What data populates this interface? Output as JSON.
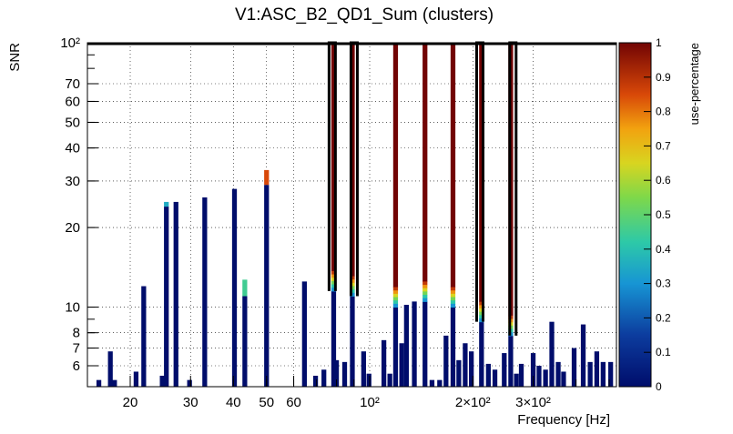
{
  "chart_data": {
    "type": "bar",
    "title": "V1:ASC_B2_QD1_Sum (clusters)",
    "xlabel": "Frequency [Hz]",
    "ylabel": "SNR",
    "xscale": "log",
    "yscale": "log",
    "xlim": [
      15,
      525
    ],
    "ylim": [
      5,
      100
    ],
    "grid": true,
    "x_ticks": [
      {
        "value": 20,
        "label": "20"
      },
      {
        "value": 30,
        "label": "30"
      },
      {
        "value": 40,
        "label": "40"
      },
      {
        "value": 50,
        "label": "50"
      },
      {
        "value": 60,
        "label": "60"
      },
      {
        "value": 100,
        "label": "10²"
      },
      {
        "value": 200,
        "label": "2×10²"
      },
      {
        "value": 300,
        "label": "3×10²"
      }
    ],
    "y_ticks": [
      {
        "value": 6,
        "label": "6"
      },
      {
        "value": 7,
        "label": "7"
      },
      {
        "value": 8,
        "label": "8"
      },
      {
        "value": 10,
        "label": "10"
      },
      {
        "value": 20,
        "label": "20"
      },
      {
        "value": 30,
        "label": "30"
      },
      {
        "value": 40,
        "label": "40"
      },
      {
        "value": 50,
        "label": "50"
      },
      {
        "value": 60,
        "label": "60"
      },
      {
        "value": 70,
        "label": "70"
      },
      {
        "value": 100,
        "label": "10²"
      }
    ],
    "colorbar": {
      "label": "use-percentage",
      "min": 0,
      "max": 1,
      "ticks": [
        "0",
        "0.1",
        "0.2",
        "0.3",
        "0.4",
        "0.5",
        "0.6",
        "0.7",
        "0.8",
        "0.9",
        "1"
      ]
    },
    "bars": [
      {
        "f": 16.2,
        "snr": 5.3
      },
      {
        "f": 17.5,
        "snr": 6.8
      },
      {
        "f": 18.0,
        "snr": 5.3
      },
      {
        "f": 20.8,
        "snr": 5.7
      },
      {
        "f": 21.9,
        "snr": 12.0
      },
      {
        "f": 24.8,
        "snr": 5.5
      },
      {
        "f": 25.5,
        "snr": 24.0,
        "cap": 25.0,
        "cap_use": 0.35
      },
      {
        "f": 27.2,
        "snr": 25.0
      },
      {
        "f": 29.8,
        "snr": 5.3
      },
      {
        "f": 33.0,
        "snr": 26.0
      },
      {
        "f": 40.3,
        "snr": 28.0
      },
      {
        "f": 43.2,
        "snr": 11.0,
        "cap": 12.7,
        "cap_use": 0.45
      },
      {
        "f": 50.0,
        "snr": 29.0,
        "cap": 33.0,
        "cap_use": 0.85
      },
      {
        "f": 64.5,
        "snr": 12.5
      },
      {
        "f": 69.5,
        "snr": 5.5
      },
      {
        "f": 73.5,
        "snr": 5.8
      },
      {
        "f": 78.5,
        "snr": 11.5,
        "cap": 100,
        "cap_use": 1.0
      },
      {
        "f": 80.0,
        "snr": 6.3
      },
      {
        "f": 84.5,
        "snr": 6.2
      },
      {
        "f": 89.0,
        "snr": 11.0,
        "cap": 100,
        "cap_use": 1.0
      },
      {
        "f": 96.0,
        "snr": 6.8
      },
      {
        "f": 99.5,
        "snr": 5.6
      },
      {
        "f": 110.0,
        "snr": 7.5
      },
      {
        "f": 114.5,
        "snr": 5.6
      },
      {
        "f": 119.0,
        "snr": 10.0,
        "cap": 100,
        "cap_use": 1.0
      },
      {
        "f": 124.0,
        "snr": 7.3
      },
      {
        "f": 128.0,
        "snr": 10.2
      },
      {
        "f": 135.0,
        "snr": 10.5
      },
      {
        "f": 145.0,
        "snr": 10.5,
        "cap": 100,
        "cap_use": 1.0
      },
      {
        "f": 152.0,
        "snr": 5.3
      },
      {
        "f": 160.0,
        "snr": 5.3
      },
      {
        "f": 167.0,
        "snr": 7.8
      },
      {
        "f": 175.0,
        "snr": 10.0,
        "cap": 100,
        "cap_use": 1.0
      },
      {
        "f": 182.0,
        "snr": 6.3
      },
      {
        "f": 190.0,
        "snr": 7.3
      },
      {
        "f": 198.0,
        "snr": 6.8
      },
      {
        "f": 212.0,
        "snr": 8.8,
        "cap": 100,
        "cap_use": 1.0
      },
      {
        "f": 222.0,
        "snr": 6.1
      },
      {
        "f": 232.0,
        "snr": 5.8
      },
      {
        "f": 247.0,
        "snr": 6.7
      },
      {
        "f": 258.0,
        "snr": 7.8,
        "cap": 100,
        "cap_use": 1.0
      },
      {
        "f": 268.0,
        "snr": 5.6
      },
      {
        "f": 277.0,
        "snr": 6.1
      },
      {
        "f": 300.0,
        "snr": 6.7
      },
      {
        "f": 312.0,
        "snr": 6.0
      },
      {
        "f": 326.0,
        "snr": 5.8
      },
      {
        "f": 340.0,
        "snr": 8.8
      },
      {
        "f": 355.0,
        "snr": 6.2
      },
      {
        "f": 368.0,
        "snr": 5.7
      },
      {
        "f": 395.0,
        "snr": 7.0
      },
      {
        "f": 420.0,
        "snr": 8.6
      },
      {
        "f": 440.0,
        "snr": 6.2
      },
      {
        "f": 460.0,
        "snr": 6.8
      },
      {
        "f": 480.0,
        "snr": 6.2
      },
      {
        "f": 505.0,
        "snr": 6.2
      }
    ],
    "outlines": [
      {
        "f0": 77.5,
        "f1": 89.8,
        "floor_left": 11.5,
        "floor_right": 11.0
      },
      {
        "f0": 209.0,
        "f1": 261.0,
        "floor_left": 8.8,
        "floor_right": 7.8
      }
    ]
  }
}
